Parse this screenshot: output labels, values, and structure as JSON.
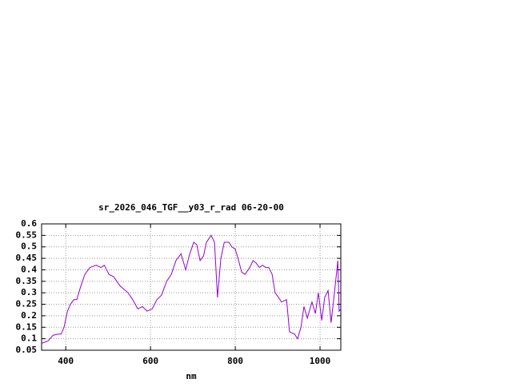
{
  "chart_data": {
    "type": "line",
    "title": "sr_2026_046_TGF__y03_r_rad 06-20-00",
    "x_label": "nm",
    "x": [
      343,
      358,
      370,
      381,
      389,
      396,
      404,
      411,
      419,
      426,
      434,
      445,
      457,
      472,
      483,
      491,
      502,
      513,
      528,
      547,
      558,
      570,
      581,
      592,
      604,
      615,
      626,
      638,
      649,
      660,
      672,
      683,
      691,
      702,
      709,
      717,
      725,
      732,
      743,
      751,
      758,
      766,
      774,
      785,
      792,
      800,
      808,
      815,
      823,
      834,
      842,
      849,
      857,
      864,
      872,
      879,
      887,
      894,
      902,
      909,
      921,
      928,
      940,
      947,
      955,
      962,
      970,
      981,
      989,
      996,
      1004,
      1011,
      1019,
      1026,
      1034,
      1042,
      1045,
      1049
    ],
    "series": [
      {
        "color": "#9400d3",
        "values": [
          0.08,
          0.09,
          0.115,
          0.12,
          0.12,
          0.15,
          0.22,
          0.25,
          0.27,
          0.27,
          0.32,
          0.38,
          0.41,
          0.42,
          0.41,
          0.42,
          0.38,
          0.37,
          0.33,
          0.3,
          0.27,
          0.23,
          0.24,
          0.22,
          0.23,
          0.27,
          0.29,
          0.35,
          0.38,
          0.44,
          0.47,
          0.4,
          0.46,
          0.52,
          0.51,
          0.44,
          0.46,
          0.52,
          0.55,
          0.52,
          0.28,
          0.45,
          0.52,
          0.52,
          0.5,
          0.49,
          0.44,
          0.39,
          0.38,
          0.41,
          0.44,
          0.43,
          0.41,
          0.42,
          0.41,
          0.41,
          0.38,
          0.3,
          0.28,
          0.26,
          0.27,
          0.13,
          0.12,
          0.1,
          0.15,
          0.24,
          0.19,
          0.26,
          0.21,
          0.3,
          0.18,
          0.28,
          0.31,
          0.17,
          0.3,
          0.44,
          0.22,
          0.23
        ]
      }
    ],
    "xlim": [
      343,
      1049
    ],
    "xticks": [
      400,
      600,
      800,
      1000
    ],
    "ylim": [
      0.05,
      0.6
    ],
    "yticks": [
      0.05,
      0.1,
      0.15,
      0.2,
      0.25,
      0.3,
      0.35,
      0.4,
      0.45,
      0.5,
      0.55,
      0.6
    ],
    "grid": true
  }
}
